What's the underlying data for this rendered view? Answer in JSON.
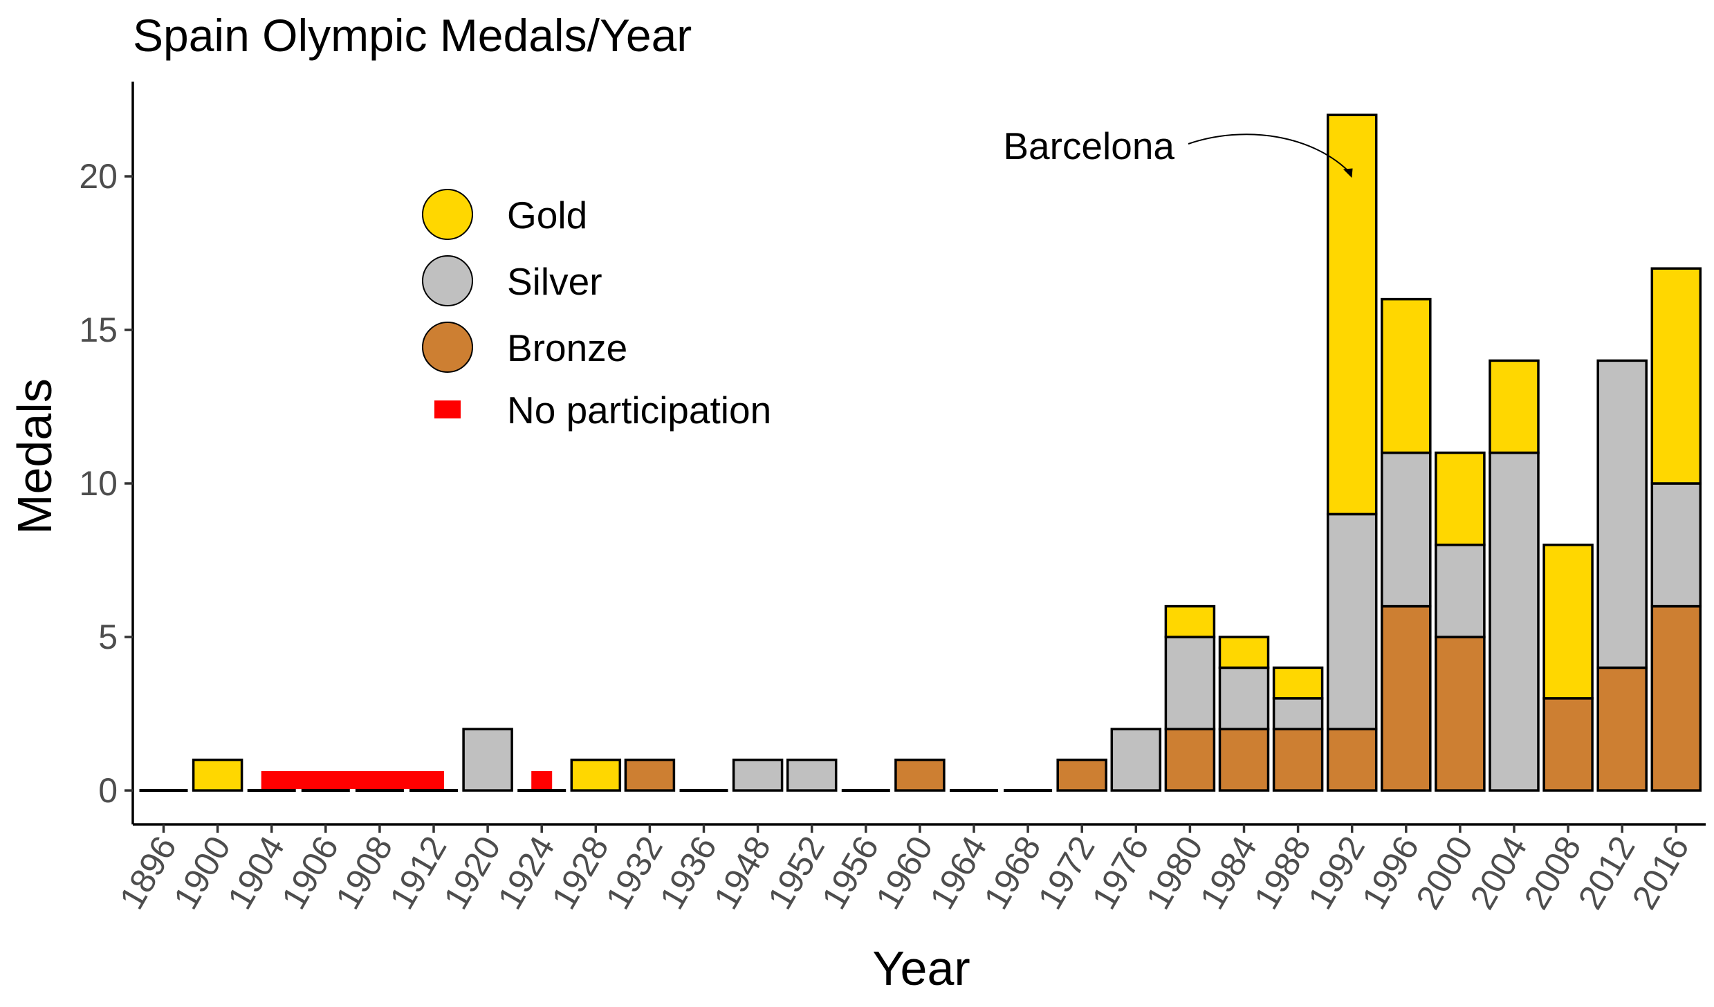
{
  "chart_data": {
    "type": "bar",
    "stacked": true,
    "title": "Spain Olympic Medals/Year",
    "xlabel": "Year",
    "ylabel": "Medals",
    "ylim": [
      0,
      23
    ],
    "yticks": [
      0,
      5,
      10,
      15,
      20
    ],
    "grid": false,
    "categories": [
      "1896",
      "1900",
      "1904",
      "1906",
      "1908",
      "1912",
      "1920",
      "1924",
      "1928",
      "1932",
      "1936",
      "1948",
      "1952",
      "1956",
      "1960",
      "1964",
      "1968",
      "1972",
      "1976",
      "1980",
      "1984",
      "1988",
      "1992",
      "1996",
      "2000",
      "2004",
      "2008",
      "2012",
      "2016"
    ],
    "series": [
      {
        "name": "Bronze",
        "color": "#cd7f32",
        "values": [
          0,
          0,
          0,
          0,
          0,
          0,
          0,
          0,
          0,
          1,
          0,
          0,
          0,
          0,
          1,
          0,
          0,
          1,
          0,
          2,
          2,
          2,
          2,
          6,
          5,
          0,
          3,
          4,
          6
        ]
      },
      {
        "name": "Silver",
        "color": "#c0c0c0",
        "values": [
          0,
          0,
          0,
          0,
          0,
          0,
          2,
          0,
          0,
          0,
          0,
          1,
          1,
          0,
          0,
          0,
          0,
          0,
          2,
          3,
          2,
          1,
          7,
          5,
          3,
          11,
          0,
          10,
          4
        ]
      },
      {
        "name": "Gold",
        "color": "#ffd700",
        "values": [
          0,
          1,
          0,
          0,
          0,
          0,
          0,
          0,
          1,
          0,
          0,
          0,
          0,
          0,
          0,
          0,
          0,
          0,
          0,
          1,
          1,
          1,
          13,
          5,
          3,
          3,
          5,
          0,
          7
        ]
      }
    ],
    "no_participation": {
      "name": "No participation",
      "color": "#ff0000",
      "years": [
        "1904",
        "1906",
        "1908",
        "1912",
        "1924"
      ]
    },
    "legend": [
      {
        "label": "Gold",
        "color": "#ffd700",
        "shape": "circle"
      },
      {
        "label": "Silver",
        "color": "#c0c0c0",
        "shape": "circle"
      },
      {
        "label": "Bronze",
        "color": "#cd7f32",
        "shape": "circle"
      },
      {
        "label": "No participation",
        "color": "#ff0000",
        "shape": "rect"
      }
    ],
    "legend_position": "top-left",
    "annotations": [
      {
        "text": "Barcelona",
        "target": "1992"
      }
    ]
  }
}
